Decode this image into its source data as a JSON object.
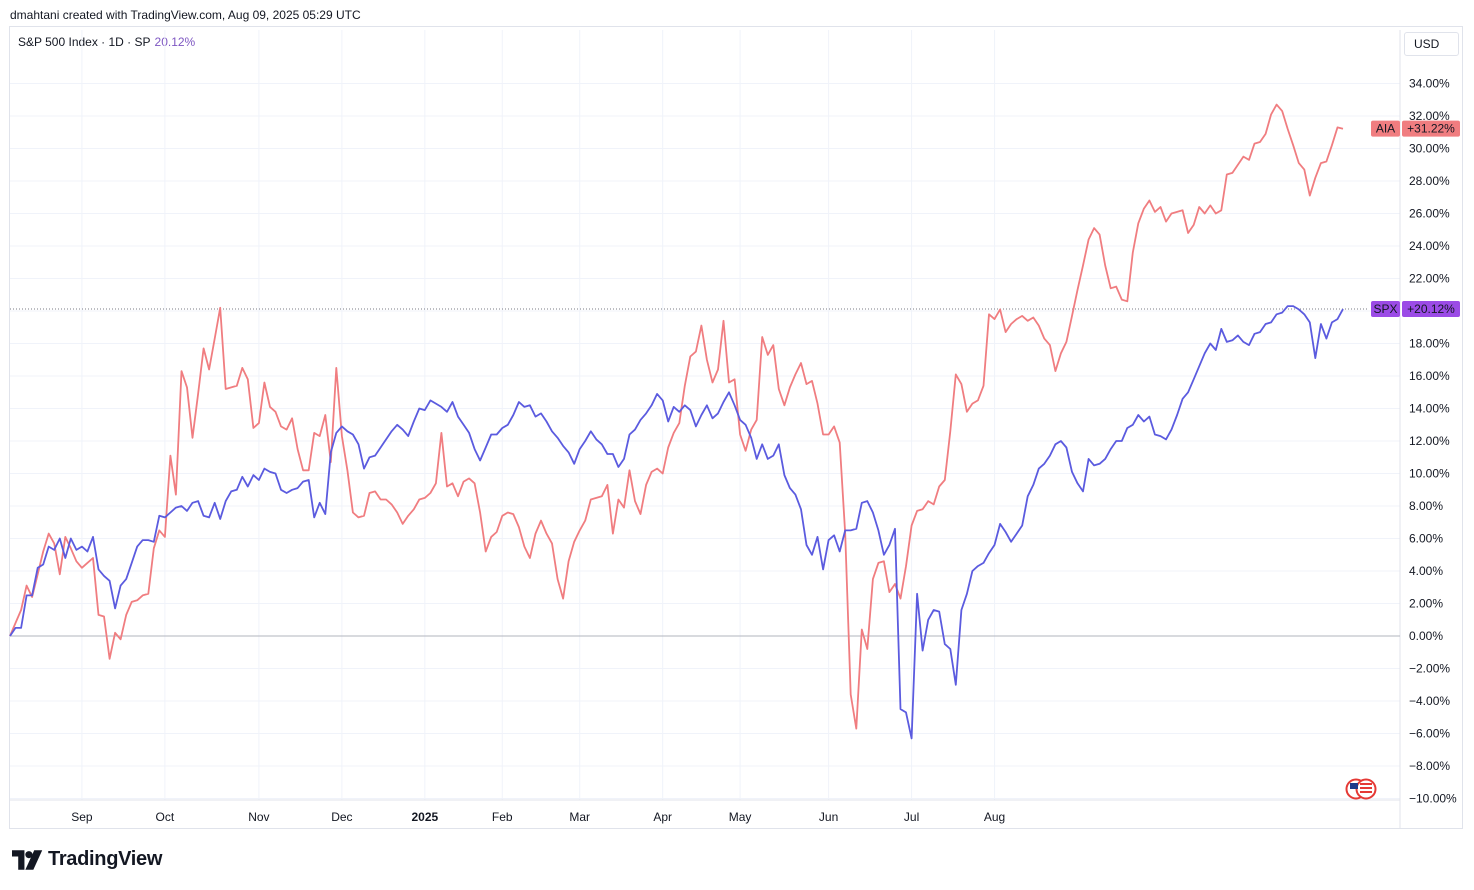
{
  "header": {
    "credit": "dmahtani created with TradingView.com, Aug 09, 2025 05:29 UTC",
    "legend_symbol": "S&P 500 Index · 1D · SP",
    "legend_value": "20.12%",
    "currency_button": "USD"
  },
  "brand": {
    "name": "TradingView"
  },
  "colors": {
    "spx": "#5b5bdf",
    "spx_light": "#9b4be6",
    "aia": "#f07d80",
    "dip": "#2196f3",
    "grid": "#f0f3fa"
  },
  "chart_data": {
    "type": "line",
    "xlabel": "",
    "ylabel": "",
    "ylim": [
      -10,
      34
    ],
    "y_ticks": [
      "34.00%",
      "32.00%",
      "30.00%",
      "28.00%",
      "26.00%",
      "24.00%",
      "22.00%",
      "20.00%",
      "18.00%",
      "16.00%",
      "14.00%",
      "12.00%",
      "10.00%",
      "8.00%",
      "6.00%",
      "4.00%",
      "2.00%",
      "0.00%",
      "−2.00%",
      "−4.00%",
      "−6.00%",
      "−8.00%",
      "−10.00%"
    ],
    "x_ticks": [
      "Sep",
      "Oct",
      "Nov",
      "Dec",
      "2025",
      "Feb",
      "Mar",
      "Apr",
      "May",
      "Jun",
      "Jul",
      "Aug"
    ],
    "x_tick_positions_index": [
      13,
      28,
      45,
      60,
      75,
      89,
      103,
      118,
      132,
      148,
      163,
      178
    ],
    "legend_position": "top-left",
    "grid": true,
    "series": [
      {
        "name": "SPX",
        "last_label": "+20.12%",
        "values": [
          0,
          0.5,
          0.5,
          2.5,
          2.5,
          4.2,
          4.4,
          5.5,
          5.3,
          6,
          4.8,
          6,
          5.3,
          5.5,
          5.2,
          6.1,
          4.1,
          3.7,
          3.4,
          1.7,
          3.1,
          3.5,
          4.5,
          5.5,
          5.9,
          5.9,
          5.8,
          7.4,
          7.3,
          7.6,
          7.9,
          8,
          7.7,
          8.2,
          8.3,
          7.4,
          7.3,
          8.2,
          7.2,
          8.3,
          8.9,
          9,
          9.8,
          9.2,
          9.9,
          9.6,
          10.3,
          10.1,
          10,
          9,
          8.8,
          9,
          9.1,
          9.5,
          9.6,
          7.3,
          8.2,
          7.5,
          11.3,
          12.5,
          12.9,
          12.6,
          12.4,
          11.8,
          10.3,
          11,
          11.1,
          11.6,
          12.1,
          12.6,
          13,
          12.7,
          12.3,
          13.2,
          14,
          13.9,
          14.5,
          14.3,
          14.1,
          13.8,
          14.4,
          13.5,
          13,
          12.5,
          11.5,
          10.8,
          11.6,
          12.4,
          12.4,
          12.8,
          13,
          13.6,
          14.4,
          14.1,
          14.2,
          13.5,
          13.7,
          13.2,
          12.6,
          12.2,
          11.7,
          11.3,
          10.6,
          11.5,
          12,
          12.6,
          12.1,
          11.8,
          11.2,
          11.2,
          10.4,
          10.9,
          12.4,
          12.7,
          13.3,
          13.7,
          14.2,
          14.9,
          14.5,
          13.2,
          14.1,
          13.8,
          14.2,
          13.9,
          12.9,
          13.6,
          14.2,
          13.4,
          13.7,
          14.4,
          15,
          14.2,
          13.3,
          13,
          12.2,
          10.9,
          11.8,
          10.9,
          11.1,
          11.8,
          9.9,
          9.1,
          8.7,
          7.8,
          5.6,
          5,
          6.1,
          4.1,
          5.9,
          6.2,
          5.2,
          6.5,
          6.5,
          6.6,
          8.2,
          8.3,
          7.6,
          6.5,
          5,
          5.6,
          6.6,
          -4.5,
          -4.7,
          -6.3,
          2.6,
          -0.9,
          1,
          1.6,
          1.5,
          -0.5,
          -0.8,
          -3,
          1.6,
          2.6,
          4,
          4.3,
          4.5,
          5.1,
          5.6,
          6.9,
          6.4,
          5.8,
          6.3,
          6.8,
          8.6,
          9.3,
          10.3,
          10.6,
          11.1,
          11.8,
          12,
          11.6,
          10.1,
          9.4,
          8.9,
          10.9,
          10.5,
          10.6,
          10.9,
          11.5,
          12,
          12,
          12.8,
          13,
          13.6,
          13.2,
          13.5,
          12.4,
          12.3,
          12.1,
          12.7,
          13.6,
          14.6,
          15,
          15.8,
          16.6,
          17.4,
          18,
          17.6,
          18.9,
          18.1,
          18.2,
          18.5,
          18.1,
          17.9,
          18.6,
          18.7,
          19.2,
          19.3,
          19.8,
          19.9,
          20.3,
          20.3,
          20.1,
          19.8,
          19.3,
          17.1,
          19.2,
          18.3,
          19.3,
          19.5,
          20.12
        ]
      },
      {
        "name": "AIA",
        "last_label": "+31.22%",
        "values": [
          0,
          0.8,
          1.6,
          3.1,
          2.4,
          3.8,
          5.2,
          6.3,
          5.7,
          3.8,
          6.1,
          5.4,
          4.6,
          4.2,
          4.5,
          4.8,
          1.3,
          1.2,
          -1.4,
          0.2,
          -0.2,
          1.3,
          2.1,
          2.2,
          2.5,
          2.6,
          5.4,
          6.5,
          6.1,
          11.1,
          8.7,
          16.3,
          15.3,
          12.2,
          14.9,
          17.7,
          16.4,
          18.3,
          20.2,
          15.2,
          15.3,
          15.4,
          16.5,
          15.8,
          12.8,
          13.1,
          15.6,
          14.1,
          13.8,
          12.9,
          12.7,
          13.4,
          11.5,
          10.2,
          10.2,
          12.5,
          12.3,
          13.6,
          10.7,
          16.5,
          12.3,
          10.2,
          7.6,
          7.3,
          7.4,
          8.8,
          8.9,
          8.4,
          8.4,
          8.1,
          7.6,
          6.9,
          7.4,
          7.8,
          8.4,
          8.5,
          8.8,
          9.4,
          12.5,
          9.2,
          9.4,
          8.6,
          9.5,
          9.7,
          9.4,
          7.6,
          5.2,
          6.1,
          6.4,
          7.4,
          7.6,
          7.5,
          6.7,
          5.5,
          4.8,
          6.3,
          7.1,
          6.3,
          5.7,
          3.5,
          2.3,
          4.6,
          5.8,
          6.5,
          7.1,
          8.4,
          8.5,
          8.6,
          9.3,
          6.3,
          8.4,
          7.9,
          10.2,
          8.3,
          7.5,
          9.3,
          10.1,
          10.3,
          10,
          11.6,
          12.5,
          13.1,
          15.4,
          17.2,
          17.5,
          19.1,
          17,
          15.6,
          16.4,
          19.4,
          15.6,
          15.8,
          12.4,
          11.4,
          12.7,
          13.3,
          18.4,
          17.3,
          17.9,
          15.2,
          14.2,
          15.3,
          16.1,
          16.8,
          15.5,
          15.7,
          14.3,
          12.4,
          12.4,
          12.9,
          11.9,
          6.3,
          -3.6,
          -5.7,
          0.4,
          -0.8,
          3.5,
          4.5,
          4.6,
          2.7,
          3.2,
          2.3,
          4.3,
          6.8,
          7.7,
          7.8,
          8.3,
          8.1,
          9.2,
          9.6,
          12.6,
          16.1,
          15.5,
          13.8,
          14.3,
          14.5,
          15.4,
          19.8,
          19.5,
          20.1,
          18.7,
          19.2,
          19.5,
          19.7,
          19.4,
          19.6,
          19.1,
          18.3,
          17.9,
          16.3,
          17.4,
          18.1,
          19.7,
          21.3,
          22.8,
          24.4,
          25.1,
          24.7,
          22.8,
          21.4,
          21.5,
          20.7,
          20.6,
          23.6,
          25.4,
          26.3,
          26.8,
          26.1,
          26.4,
          25.5,
          26,
          26.1,
          26.2,
          24.8,
          25.3,
          26.4,
          26,
          26.5,
          26,
          26.2,
          28.4,
          28.5,
          29,
          29.5,
          29.3,
          30.3,
          30.4,
          30.9,
          32.1,
          32.7,
          32.3,
          31.2,
          30.2,
          29.1,
          28.7,
          27.1,
          28.2,
          29.1,
          29.2,
          30.2,
          31.3,
          31.22
        ]
      }
    ]
  }
}
